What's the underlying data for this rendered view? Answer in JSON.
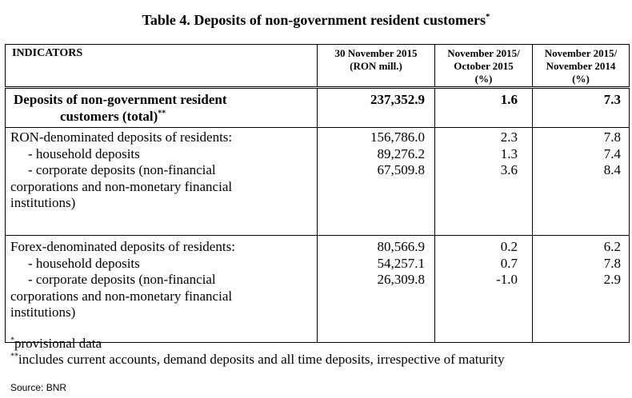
{
  "title": {
    "text": "Table 4. Deposits of non-government resident customers",
    "mark": "*"
  },
  "header": {
    "indicators": "INDICATORS",
    "col1": [
      "30 November 2015",
      "(RON mill.)"
    ],
    "col2": [
      "November 2015/",
      "October 2015",
      "(%)"
    ],
    "col3": [
      "November 2015/",
      "November 2014",
      "(%)"
    ]
  },
  "total": {
    "label_line1": "Deposits of non-government resident",
    "label_line2": "customers (total)",
    "mark": "**",
    "value": "237,352.9",
    "mom": "1.6",
    "yoy": "7.3"
  },
  "ron": {
    "lines": [
      "RON-denominated deposits of residents:",
      "- household deposits",
      "- corporate deposits (non-financial",
      "corporations and non-monetary financial",
      "institutions)"
    ],
    "values": [
      "156,786.0",
      "89,276.2",
      "67,509.8"
    ],
    "mom": [
      "2.3",
      "1.3",
      "3.6"
    ],
    "yoy": [
      "7.8",
      "7.4",
      "8.4"
    ]
  },
  "forex": {
    "lines": [
      "Forex-denominated deposits of residents:",
      "- household deposits",
      "- corporate deposits (non-financial",
      "corporations and non-monetary financial",
      "institutions)"
    ],
    "values": [
      "80,566.9",
      "54,257.1",
      "26,309.8"
    ],
    "mom": [
      "0.2",
      "0.7",
      "-1.0"
    ],
    "yoy": [
      "6.2",
      "7.8",
      "2.9"
    ]
  },
  "notes": {
    "n1_mark": "*",
    "n1_text": "provisional data",
    "n2_mark": "**",
    "n2_text": "includes current accounts, demand deposits and all time deposits, irrespective of maturity"
  },
  "source": "Source: BNR"
}
